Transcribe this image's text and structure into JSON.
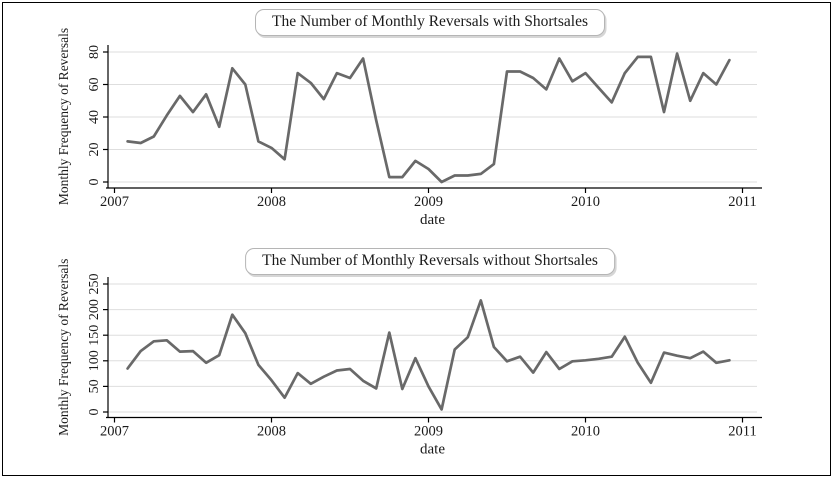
{
  "figure": {
    "background": "#ffffff",
    "border_color": "#000000"
  },
  "style": {
    "line_color": "#696969",
    "grid_color": "#dedede",
    "axis_color": "#000000",
    "text_color": "#1a1a1a",
    "title_box_border": "#b5b5b5"
  },
  "chart_data": [
    {
      "type": "line",
      "title": "The Number of Monthly Reversals with Shortsales",
      "xlabel": "date",
      "ylabel": "Monthly Frequency of Reversals",
      "x_tick_labels": [
        "2007",
        "2008",
        "2009",
        "2010",
        "2011"
      ],
      "y_ticks": [
        0,
        20,
        40,
        60,
        80
      ],
      "ylim": [
        0,
        80
      ],
      "grid": true,
      "legend": "none",
      "x_start": "2007m2",
      "x_interval": "month",
      "values": [
        25,
        24,
        28,
        41,
        53,
        43,
        54,
        34,
        70,
        60,
        25,
        21,
        14,
        67,
        61,
        51,
        67,
        64,
        76,
        38,
        3,
        3,
        13,
        8,
        0,
        4,
        4,
        5,
        11,
        68,
        68,
        64,
        57,
        76,
        62,
        67,
        58,
        49,
        67,
        77,
        77,
        43,
        79,
        50,
        67,
        60,
        75
      ]
    },
    {
      "type": "line",
      "title": "The Number of Monthly Reversals without Shortsales",
      "xlabel": "date",
      "ylabel": "Monthly Frequency of Reversals",
      "x_tick_labels": [
        "2007",
        "2008",
        "2009",
        "2010",
        "2011"
      ],
      "y_ticks": [
        0,
        50,
        100,
        150,
        200,
        250
      ],
      "ylim": [
        0,
        250
      ],
      "grid": true,
      "legend": "none",
      "x_start": "2007m2",
      "x_interval": "month",
      "values": [
        85,
        119,
        138,
        140,
        118,
        119,
        96,
        111,
        190,
        154,
        92,
        62,
        28,
        76,
        55,
        69,
        81,
        84,
        61,
        46,
        155,
        45,
        105,
        50,
        5,
        122,
        146,
        218,
        127,
        99,
        108,
        77,
        117,
        84,
        99,
        101,
        104,
        108,
        147,
        96,
        57,
        116,
        110,
        105,
        118,
        96,
        101
      ]
    }
  ]
}
